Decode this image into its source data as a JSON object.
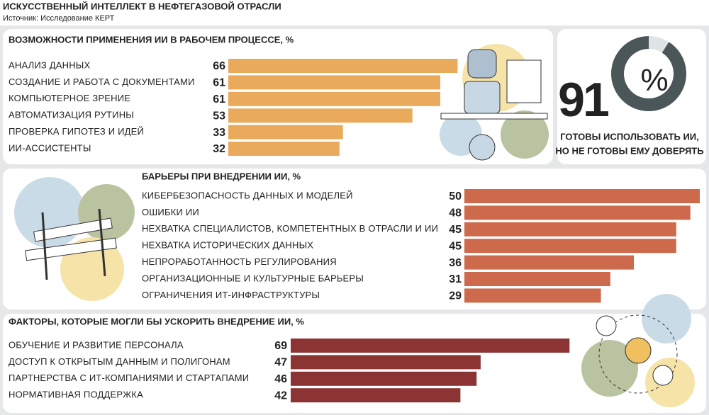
{
  "header": {
    "title": "ИСКУССТВЕННЫЙ ИНТЕЛЛЕКТ В НЕФТЕГАЗОВОЙ ОТРАСЛИ",
    "source": "Источник: Исследование КЕРТ"
  },
  "chart_data": [
    {
      "type": "bar",
      "orientation": "horizontal",
      "title": "ВОЗМОЖНОСТИ ПРИМЕНЕНИЯ ИИ В РАБОЧЕМ ПРОЦЕССЕ, %",
      "categories": [
        "АНАЛИЗ ДАННЫХ",
        "СОЗДАНИЕ И РАБОТА С ДОКУМЕНТАМИ",
        "КОМПЬЮТЕРНОЕ ЗРЕНИЕ",
        "АВТОМАТИЗАЦИЯ РУТИНЫ",
        "ПРОВЕРКА ГИПОТЕЗ И ИДЕЙ",
        "ИИ-АССИСТЕНТЫ"
      ],
      "values": [
        66,
        61,
        61,
        53,
        33,
        32
      ],
      "color": "#e9aa5c"
    },
    {
      "type": "donut",
      "value": 91,
      "unit": "%",
      "caption": [
        "ГОТОВЫ ИСПОЛЬЗОВАТЬ ИИ,",
        "НО НЕ ГОТОВЫ ЕМУ ДОВЕРЯТЬ"
      ],
      "color": "#4b5659",
      "rest_color": "#dfe3e6"
    },
    {
      "type": "bar",
      "orientation": "horizontal",
      "title": "БАРЬЕРЫ ПРИ ВНЕДРЕНИИ ИИ, %",
      "categories": [
        "КИБЕРБЕЗОПАСНОСТЬ ДАННЫХ И МОДЕЛЕЙ",
        "ОШИБКИ ИИ",
        "НЕХВАТКА СПЕЦИАЛИСТОВ, КОМПЕТЕНТНЫХ В ОТРАСЛИ И ИИ",
        "НЕХВАТКА ИСТОРИЧЕСКИХ ДАННЫХ",
        "НЕПРОРАБОТАННОСТЬ РЕГУЛИРОВАНИЯ",
        "ОРГАНИЗАЦИОННЫЕ И КУЛЬТУРНЫЕ БАРЬЕРЫ",
        "ОГРАНИЧЕНИЯ ИТ-ИНФРАСТРУКТУРЫ"
      ],
      "values": [
        50,
        48,
        45,
        45,
        36,
        31,
        29
      ],
      "color": "#cc6a4b"
    },
    {
      "type": "bar",
      "orientation": "horizontal",
      "title": "ФАКТОРЫ, КОТОРЫЕ МОГЛИ БЫ УСКОРИТЬ ВНЕДРЕНИЕ ИИ, %",
      "categories": [
        "ОБУЧЕНИЕ И РАЗВИТИЕ ПЕРСОНАЛА",
        "ДОСТУП К ОТКРЫТЫМ ДАННЫМ И ПОЛИГОНАМ",
        "ПАРТНЕРСТВА С ИТ-КОМПАНИЯМИ И СТАРТАПАМИ",
        "НОРМАТИВНАЯ ПОДДЕРЖКА"
      ],
      "values": [
        69,
        47,
        46,
        42
      ],
      "color": "#8c3434"
    }
  ]
}
